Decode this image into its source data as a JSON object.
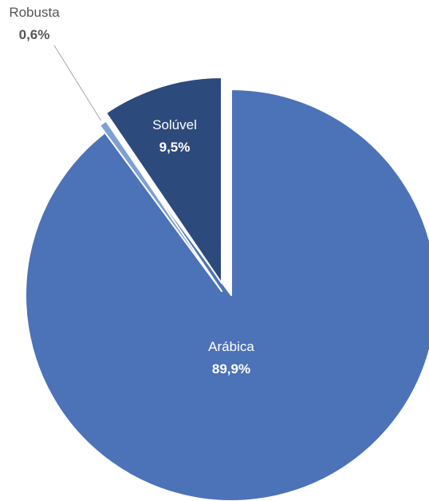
{
  "chart_data": {
    "type": "pie",
    "title": "",
    "start_angle_deg": 0,
    "direction": "clockwise",
    "exploded": true,
    "legend": "none",
    "slices": [
      {
        "name": "Arábica",
        "value": 89.9,
        "label": "89,9%",
        "color": "#4c72b8",
        "label_color": "#ffffff"
      },
      {
        "name": "Robusta",
        "value": 0.6,
        "label": "0,6%",
        "color": "#7da0d4",
        "label_color": "#555555",
        "label_outside": true
      },
      {
        "name": "Solúvel",
        "value": 9.5,
        "label": "9,5%",
        "color": "#2d4a7c",
        "label_color": "#ffffff"
      }
    ]
  }
}
